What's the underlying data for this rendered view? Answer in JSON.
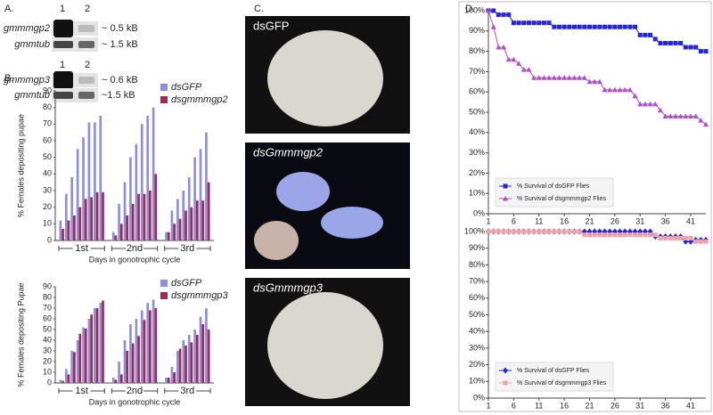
{
  "panels": {
    "a": "A.",
    "b": "B.",
    "c": "C.",
    "d": "D."
  },
  "blot": [
    {
      "lanes": [
        "1",
        "2"
      ],
      "rows": [
        {
          "gene": "gmmmgp2",
          "size": "~ 0.5 kB"
        },
        {
          "gene": "gmmtub",
          "size": "~ 1.5 kB"
        }
      ]
    },
    {
      "lanes": [
        "1",
        "2"
      ],
      "rows": [
        {
          "gene": "gmmmgp3",
          "size": "~ 0.6 kB"
        },
        {
          "gene": "gmmtub",
          "size": "~1.5 kB"
        }
      ]
    }
  ],
  "photos": [
    "dsGFP",
    "dsGmmmgp2",
    "dsGmmmgp3"
  ],
  "chart_data": [
    {
      "type": "bar",
      "ylabel": "% Females depositing pupae",
      "xlabel": "Days in gonotrophic cycle",
      "group_labels": [
        "1st",
        "2nd",
        "3rd"
      ],
      "categories": [
        null,
        null,
        null,
        null,
        null,
        null,
        null,
        null,
        null,
        null,
        null,
        null,
        null,
        null,
        null,
        null,
        null,
        null,
        null,
        null,
        null,
        null,
        null,
        null
      ],
      "ylim": [
        0,
        90
      ],
      "yticks": [
        0,
        10,
        20,
        30,
        40,
        50,
        60,
        70,
        80,
        90
      ],
      "series": [
        {
          "name": "dsGFP",
          "color": "#8f8fe0",
          "values": [
            12,
            28,
            38,
            55,
            62,
            71,
            71,
            75,
            5,
            22,
            35,
            50,
            58,
            70,
            75,
            80,
            5,
            18,
            25,
            30,
            38,
            50,
            55,
            65
          ]
        },
        {
          "name": "dsgmmmgp2",
          "color": "#9e2a4f",
          "values": [
            7,
            12,
            15,
            20,
            25,
            26,
            29,
            29,
            3,
            10,
            15,
            22,
            28,
            28,
            30,
            40,
            5,
            10,
            13,
            18,
            20,
            24,
            24,
            35
          ]
        }
      ]
    },
    {
      "type": "bar",
      "ylabel": "% Females depositing Pupae",
      "xlabel": "Days in gonotrophic cycle",
      "group_labels": [
        "1st",
        "2nd",
        "3rd"
      ],
      "categories": [
        null,
        null,
        null,
        null,
        null,
        null,
        null,
        null,
        null,
        null,
        null,
        null,
        null,
        null,
        null,
        null,
        null,
        null,
        null,
        null,
        null,
        null,
        null,
        null
      ],
      "ylim": [
        0,
        90
      ],
      "yticks": [
        0,
        10,
        20,
        30,
        40,
        50,
        60,
        70,
        80,
        90
      ],
      "series": [
        {
          "name": "dsGFP",
          "color": "#8f8fe0",
          "values": [
            3,
            13,
            30,
            40,
            52,
            60,
            70,
            75,
            5,
            20,
            40,
            55,
            60,
            68,
            75,
            78,
            5,
            15,
            30,
            40,
            45,
            50,
            62,
            70
          ]
        },
        {
          "name": "dsgmmmgp3",
          "color": "#9e2a4f",
          "values": [
            2,
            8,
            29,
            46,
            51,
            64,
            70,
            77,
            3,
            8,
            30,
            37,
            44,
            59,
            68,
            70,
            5,
            10,
            32,
            35,
            38,
            45,
            55,
            50
          ]
        }
      ]
    },
    {
      "type": "line",
      "legend": "lower left",
      "x": [
        1,
        2,
        3,
        4,
        5,
        6,
        7,
        8,
        9,
        10,
        11,
        12,
        13,
        14,
        15,
        16,
        17,
        18,
        19,
        20,
        21,
        22,
        23,
        24,
        25,
        26,
        27,
        28,
        29,
        30,
        31,
        32,
        33,
        34,
        35,
        36,
        37,
        38,
        39,
        40,
        41,
        42,
        43,
        44
      ],
      "xlim": [
        1,
        44
      ],
      "xticks": [
        1,
        6,
        11,
        16,
        21,
        26,
        31,
        36,
        41
      ],
      "ylim": [
        0,
        100
      ],
      "yticks": [
        {
          "value": 0,
          "label": "0%"
        },
        {
          "value": 10,
          "label": "10%"
        },
        {
          "value": 20,
          "label": "20%"
        },
        {
          "value": 30,
          "label": "30%"
        },
        {
          "value": 40,
          "label": "40%"
        },
        {
          "value": 50,
          "label": "50%"
        },
        {
          "value": 60,
          "label": "60%"
        },
        {
          "value": 70,
          "label": "70%"
        },
        {
          "value": 80,
          "label": "80%"
        },
        {
          "value": 90,
          "label": "90%"
        },
        {
          "value": 100,
          "label": "100%"
        }
      ],
      "series": [
        {
          "name": "% Survival of dsGFP Flies",
          "color": "#2424dc",
          "marker": "square",
          "values": [
            100,
            100,
            98,
            98,
            98,
            94,
            94,
            94,
            94,
            94,
            94,
            94,
            94,
            92,
            92,
            92,
            92,
            92,
            92,
            92,
            92,
            92,
            92,
            92,
            92,
            92,
            92,
            92,
            92,
            92,
            88,
            88,
            88,
            86,
            84,
            84,
            84,
            84,
            84,
            82,
            82,
            82,
            80,
            80
          ]
        },
        {
          "name": "% Survival of dsgmmmgp2 Flies",
          "color": "#b04cc8",
          "marker": "triangle",
          "values": [
            100,
            92,
            82,
            82,
            76,
            76,
            74,
            71,
            71,
            67,
            67,
            67,
            67,
            67,
            67,
            67,
            67,
            67,
            67,
            67,
            65,
            65,
            65,
            61,
            61,
            61,
            61,
            61,
            61,
            58,
            54,
            54,
            54,
            54,
            51,
            48,
            48,
            48,
            48,
            48,
            48,
            48,
            46,
            44
          ]
        }
      ]
    },
    {
      "type": "line",
      "legend": "lower left",
      "x": [
        1,
        2,
        3,
        4,
        5,
        6,
        7,
        8,
        9,
        10,
        11,
        12,
        13,
        14,
        15,
        16,
        17,
        18,
        19,
        20,
        21,
        22,
        23,
        24,
        25,
        26,
        27,
        28,
        29,
        30,
        31,
        32,
        33,
        34,
        35,
        36,
        37,
        38,
        39,
        40,
        41,
        42,
        43,
        44
      ],
      "xlim": [
        1,
        44
      ],
      "xticks": [
        1,
        6,
        11,
        16,
        21,
        26,
        31,
        36,
        41
      ],
      "ylim": [
        0,
        100
      ],
      "yticks": [
        {
          "value": 0,
          "label": "0%"
        },
        {
          "value": 10,
          "label": "10%"
        },
        {
          "value": 20,
          "label": "20%"
        },
        {
          "value": 30,
          "label": "30%"
        },
        {
          "value": 40,
          "label": "40%"
        },
        {
          "value": 50,
          "label": "50%"
        },
        {
          "value": 60,
          "label": "60%"
        },
        {
          "value": 70,
          "label": "70%"
        },
        {
          "value": 80,
          "label": "80%"
        },
        {
          "value": 90,
          "label": "90%"
        },
        {
          "value": 100,
          "label": "100%"
        }
      ],
      "series": [
        {
          "name": "% Survival of dsGFP Flies",
          "color": "#2424dc",
          "marker": "diamond",
          "values": [
            100,
            100,
            100,
            100,
            100,
            100,
            100,
            100,
            100,
            100,
            100,
            100,
            100,
            100,
            100,
            100,
            100,
            100,
            100,
            100,
            100,
            100,
            100,
            100,
            100,
            100,
            100,
            100,
            100,
            100,
            100,
            100,
            100,
            97,
            97,
            97,
            97,
            97,
            97,
            94,
            94,
            95,
            95,
            95
          ]
        },
        {
          "name": "% Survival of dsgmmmgp3 Flies",
          "color": "#f0a0a8",
          "marker": "square",
          "values": [
            100,
            100,
            100,
            100,
            100,
            100,
            100,
            100,
            100,
            100,
            100,
            100,
            100,
            100,
            100,
            100,
            100,
            100,
            100,
            98,
            98,
            98,
            98,
            98,
            98,
            98,
            98,
            98,
            98,
            98,
            98,
            98,
            98,
            98,
            96,
            96,
            96,
            96,
            96,
            96,
            96,
            94,
            94,
            94
          ]
        }
      ]
    }
  ]
}
